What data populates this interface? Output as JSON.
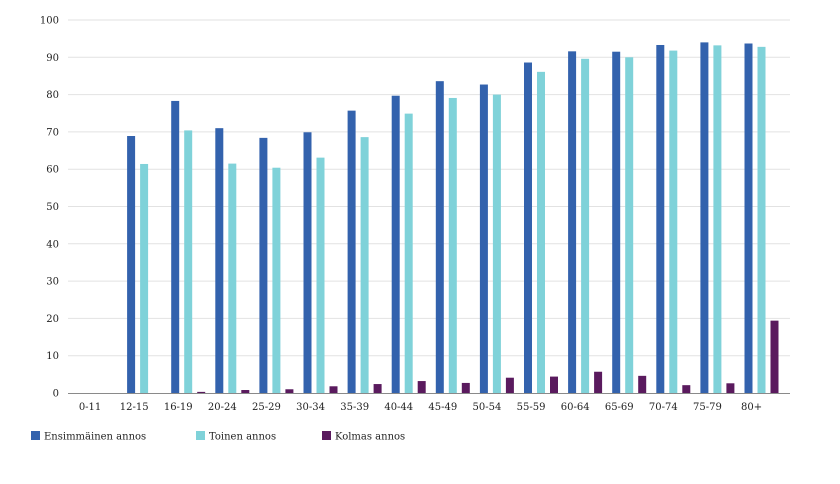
{
  "chart_data": {
    "type": "bar",
    "title": "",
    "xlabel": "",
    "ylabel": "",
    "ylim": [
      0,
      100
    ],
    "yticks": [
      0,
      10,
      20,
      30,
      40,
      50,
      60,
      70,
      80,
      90,
      100
    ],
    "grid": true,
    "legend_position": "bottom-left",
    "categories": [
      "0-11",
      "12-15",
      "16-19",
      "20-24",
      "25-29",
      "30-34",
      "35-39",
      "40-44",
      "45-49",
      "50-54",
      "55-59",
      "60-64",
      "65-69",
      "70-74",
      "75-79",
      "80+"
    ],
    "series": [
      {
        "name": "Ensimmäinen annos",
        "color": "#3362ad",
        "values": [
          0,
          68.9,
          78.3,
          71.0,
          68.4,
          69.9,
          75.7,
          79.7,
          83.6,
          82.7,
          88.6,
          91.6,
          91.5,
          93.3,
          94.0,
          93.7
        ]
      },
      {
        "name": "Toinen annos",
        "color": "#7fd2d9",
        "values": [
          0,
          61.4,
          70.4,
          61.5,
          60.4,
          63.1,
          68.6,
          74.9,
          79.1,
          80.0,
          86.1,
          89.6,
          90.0,
          91.8,
          93.2,
          92.8
        ]
      },
      {
        "name": "Kolmas annos",
        "color": "#5a1a5e",
        "values": [
          0,
          0,
          0.3,
          0.8,
          1.0,
          1.8,
          2.4,
          3.2,
          2.7,
          4.1,
          4.4,
          5.7,
          4.6,
          2.1,
          2.6,
          19.4
        ]
      }
    ]
  }
}
